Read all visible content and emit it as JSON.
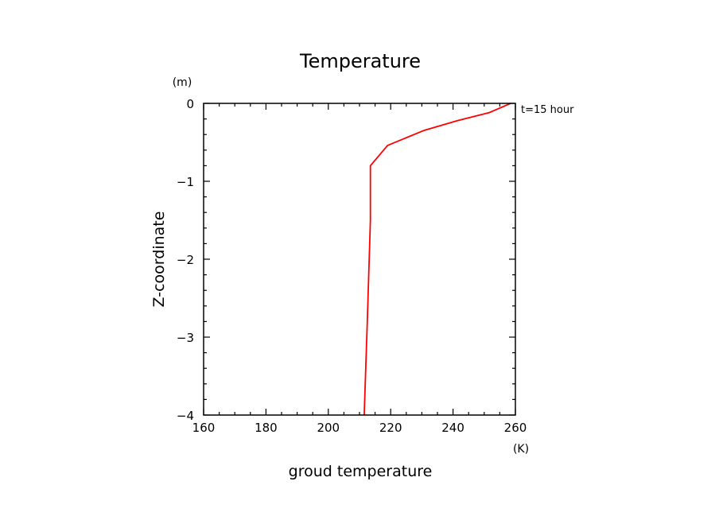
{
  "chart_data": {
    "type": "line",
    "title": "Temperature",
    "xlabel": "groud temperature",
    "ylabel": "Z-coordinate",
    "x_unit": "(K)",
    "y_unit": "(m)",
    "annotation": "t=15 hour",
    "xlim": [
      160,
      260
    ],
    "ylim": [
      -4,
      0
    ],
    "xticks": [
      160,
      180,
      200,
      220,
      240,
      260
    ],
    "xtick_labels": [
      "160",
      "180",
      "200",
      "220",
      "240",
      "260"
    ],
    "yticks": [
      0,
      -1,
      -2,
      -3,
      -4
    ],
    "ytick_labels": [
      "0",
      "−1",
      "−2",
      "−3",
      "−4"
    ],
    "grid": false,
    "series": [
      {
        "color": "#ff0000",
        "x": [
          258.5,
          251.5,
          241.5,
          230.5,
          219.0,
          213.5,
          213.5,
          212.5,
          211.5
        ],
        "y": [
          0,
          -0.12,
          -0.22,
          -0.35,
          -0.54,
          -0.8,
          -1.5,
          -2.8,
          -4.0
        ]
      }
    ]
  }
}
